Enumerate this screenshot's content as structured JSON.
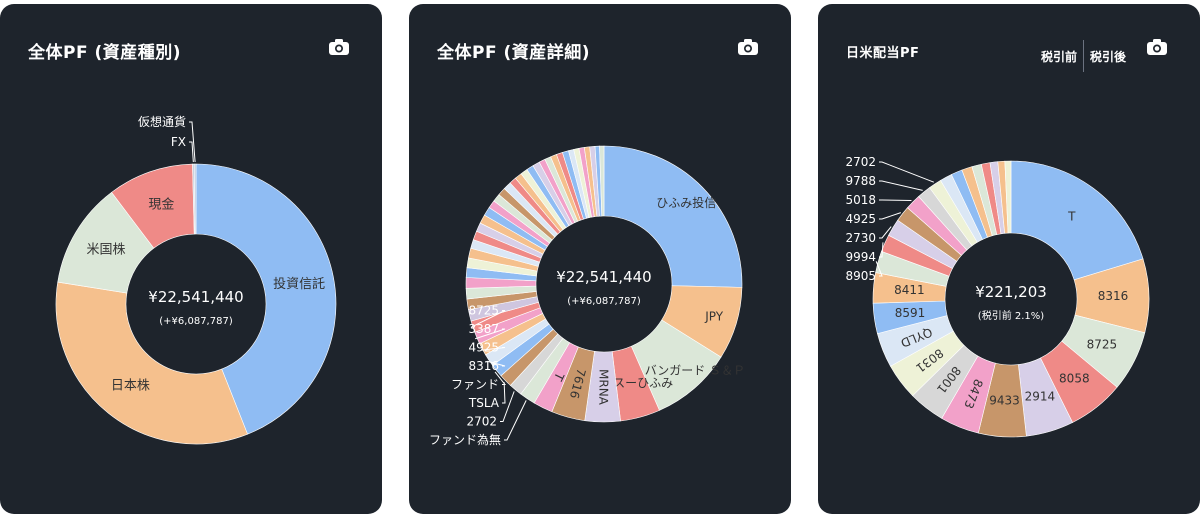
{
  "cards": [
    {
      "title": "全体PF (資産種別)",
      "camera_icon": "camera-icon"
    },
    {
      "title": "全体PF (資産詳細)",
      "camera_icon": "camera-icon"
    },
    {
      "title": "日米配当PF",
      "camera_icon": "camera-icon",
      "tax_toggle": {
        "before": "税引前",
        "after": "税引後"
      }
    }
  ],
  "chart_data": [
    {
      "type": "pie",
      "donut": true,
      "center_value": "¥22,541,440",
      "center_sub": "(+¥6,087,787)",
      "slices": [
        {
          "label": "投資信託",
          "value": 44.0,
          "color": "#8fbcf3",
          "label_inside": true
        },
        {
          "label": "日本株",
          "value": 33.5,
          "color": "#f5c08d",
          "label_inside": true
        },
        {
          "label": "米国株",
          "value": 12.2,
          "color": "#dbe7d8",
          "label_inside": true
        },
        {
          "label": "現金",
          "value": 9.9,
          "color": "#ef8a87",
          "label_inside": true
        },
        {
          "label": "FX",
          "value": 0.2,
          "color": "#c8d3e0",
          "label_inside": false
        },
        {
          "label": "仮想通貨",
          "value": 0.2,
          "color": "#b9c8dc",
          "label_inside": false
        }
      ]
    },
    {
      "type": "pie",
      "donut": true,
      "center_value": "¥22,541,440",
      "center_sub": "(+¥6,087,787)",
      "slices": [
        {
          "label": "ひふみ投信",
          "value": 24.5,
          "color": "#8fbcf3",
          "label_inside": true
        },
        {
          "label": "JPY",
          "value": 8.2,
          "color": "#f5c08d",
          "label_inside": true
        },
        {
          "label": "SBI・バンガード Ｓ＆Ｐ",
          "value": 9.2,
          "color": "#dbe7d8",
          "label_inside": true
        },
        {
          "label": "レオスーひふみ",
          "value": 4.5,
          "color": "#ef8a87",
          "label_inside": true
        },
        {
          "label": "MRNA",
          "value": 4.0,
          "color": "#d7cfe8",
          "label_inside": true,
          "rotated": true
        },
        {
          "label": "7616",
          "value": 3.8,
          "color": "#c7966a",
          "label_inside": true,
          "rotated": true
        },
        {
          "label": "T",
          "value": 2.2,
          "color": "#f2a1c9",
          "label_inside": true,
          "rotated": true
        },
        {
          "label": "ファンド為無",
          "value": 1.8,
          "color": "#dbe7d8",
          "label_inside": false
        },
        {
          "label": "2702",
          "value": 1.5,
          "color": "#d7d7d7",
          "label_inside": false
        },
        {
          "label": "TSLA",
          "value": 1.5,
          "color": "#c7966a",
          "label_inside": false
        },
        {
          "label": "ファンド",
          "value": 1.5,
          "color": "#8fbcf3",
          "label_inside": false
        },
        {
          "label": "8316",
          "value": 1.4,
          "color": "#dbe7f5",
          "label_inside": false
        },
        {
          "label": "4925",
          "value": 1.4,
          "color": "#f5c08d",
          "label_inside": false
        },
        {
          "label": "3387",
          "value": 1.4,
          "color": "#f2a1c9",
          "label_inside": false
        },
        {
          "label": "8725",
          "value": 1.3,
          "color": "#ef8a87",
          "label_inside": false
        },
        {
          "label": "",
          "value": 1.3,
          "color": "#cfc6df",
          "label_inside": false
        },
        {
          "label": "",
          "value": 1.2,
          "color": "#c7966a",
          "label_inside": false
        },
        {
          "label": "",
          "value": 1.2,
          "color": "#dbe7d8",
          "label_inside": false
        },
        {
          "label": "",
          "value": 1.2,
          "color": "#f2a1c9",
          "label_inside": false
        },
        {
          "label": "",
          "value": 1.1,
          "color": "#8fbcf3",
          "label_inside": false
        },
        {
          "label": "",
          "value": 1.1,
          "color": "#eef2d7",
          "label_inside": false
        },
        {
          "label": "",
          "value": 1.1,
          "color": "#f5c08d",
          "label_inside": false
        },
        {
          "label": "",
          "value": 1.0,
          "color": "#dbe7f5",
          "label_inside": false
        },
        {
          "label": "",
          "value": 1.0,
          "color": "#ef8a87",
          "label_inside": false
        },
        {
          "label": "",
          "value": 1.0,
          "color": "#d7cfe8",
          "label_inside": false
        },
        {
          "label": "",
          "value": 1.0,
          "color": "#f5c08d",
          "label_inside": false
        },
        {
          "label": "",
          "value": 1.0,
          "color": "#8fbcf3",
          "label_inside": false
        },
        {
          "label": "",
          "value": 0.9,
          "color": "#f2a1c9",
          "label_inside": false
        },
        {
          "label": "",
          "value": 0.9,
          "color": "#dbe7d8",
          "label_inside": false
        },
        {
          "label": "",
          "value": 0.9,
          "color": "#c7966a",
          "label_inside": false
        },
        {
          "label": "",
          "value": 0.9,
          "color": "#dbe7f5",
          "label_inside": false
        },
        {
          "label": "",
          "value": 0.8,
          "color": "#ef8a87",
          "label_inside": false
        },
        {
          "label": "",
          "value": 0.8,
          "color": "#f5c08d",
          "label_inside": false
        },
        {
          "label": "",
          "value": 0.8,
          "color": "#eef2d7",
          "label_inside": false
        },
        {
          "label": "",
          "value": 0.8,
          "color": "#8fbcf3",
          "label_inside": false
        },
        {
          "label": "",
          "value": 0.8,
          "color": "#d7cfe8",
          "label_inside": false
        },
        {
          "label": "",
          "value": 0.7,
          "color": "#f2a1c9",
          "label_inside": false
        },
        {
          "label": "",
          "value": 0.7,
          "color": "#dbe7d8",
          "label_inside": false
        },
        {
          "label": "",
          "value": 0.7,
          "color": "#f5c08d",
          "label_inside": false
        },
        {
          "label": "",
          "value": 0.7,
          "color": "#ef8a87",
          "label_inside": false
        },
        {
          "label": "",
          "value": 0.7,
          "color": "#8fbcf3",
          "label_inside": false
        },
        {
          "label": "",
          "value": 0.6,
          "color": "#dbe7f5",
          "label_inside": false
        },
        {
          "label": "",
          "value": 0.6,
          "color": "#eef2d7",
          "label_inside": false
        },
        {
          "label": "",
          "value": 0.6,
          "color": "#f2a1c9",
          "label_inside": false
        },
        {
          "label": "",
          "value": 0.6,
          "color": "#f5c08d",
          "label_inside": false
        },
        {
          "label": "",
          "value": 0.6,
          "color": "#d7cfe8",
          "label_inside": false
        },
        {
          "label": "",
          "value": 0.5,
          "color": "#8fbcf3",
          "label_inside": false
        },
        {
          "label": "",
          "value": 0.5,
          "color": "#dbe7d8",
          "label_inside": false
        }
      ]
    },
    {
      "type": "pie",
      "donut": true,
      "center_value": "¥221,203",
      "center_sub": "(税引前 2.1%)",
      "slices": [
        {
          "label": "T",
          "value": 20.0,
          "color": "#8fbcf3",
          "label_inside": true
        },
        {
          "label": "8316",
          "value": 8.5,
          "color": "#f5c08d",
          "label_inside": true
        },
        {
          "label": "8725",
          "value": 7.0,
          "color": "#dbe7d8",
          "label_inside": true
        },
        {
          "label": "8058",
          "value": 6.5,
          "color": "#ef8a87",
          "label_inside": true
        },
        {
          "label": "2914",
          "value": 5.5,
          "color": "#d7cfe8",
          "label_inside": true
        },
        {
          "label": "9433",
          "value": 5.5,
          "color": "#c7966a",
          "label_inside": true
        },
        {
          "label": "8473",
          "value": 4.5,
          "color": "#f2a1c9",
          "label_inside": true,
          "rotated": true
        },
        {
          "label": "8001",
          "value": 4.2,
          "color": "#d7d7d7",
          "label_inside": true,
          "rotated": true
        },
        {
          "label": "8031",
          "value": 4.2,
          "color": "#eef2d7",
          "label_inside": true,
          "rotated": true
        },
        {
          "label": "QYLD",
          "value": 4.0,
          "color": "#dbe7f5",
          "label_inside": true,
          "rotated": true
        },
        {
          "label": "8591",
          "value": 3.5,
          "color": "#8fbcf3",
          "label_inside": true
        },
        {
          "label": "8411",
          "value": 3.5,
          "color": "#f5c08d",
          "label_inside": true
        },
        {
          "label": "8905",
          "value": 2.5,
          "color": "#dbe7d8",
          "label_inside": false
        },
        {
          "label": "9994",
          "value": 2.0,
          "color": "#ef8a87",
          "label_inside": false
        },
        {
          "label": "2730",
          "value": 2.0,
          "color": "#d7cfe8",
          "label_inside": false
        },
        {
          "label": "4925",
          "value": 1.8,
          "color": "#c7966a",
          "label_inside": false
        },
        {
          "label": "5018",
          "value": 1.8,
          "color": "#f2a1c9",
          "label_inside": false
        },
        {
          "label": "9788",
          "value": 1.6,
          "color": "#d7d7d7",
          "label_inside": false
        },
        {
          "label": "2702",
          "value": 1.5,
          "color": "#eef2d7",
          "label_inside": false
        },
        {
          "label": "",
          "value": 1.4,
          "color": "#dbe7f5",
          "label_inside": false
        },
        {
          "label": "",
          "value": 1.3,
          "color": "#8fbcf3",
          "label_inside": false
        },
        {
          "label": "",
          "value": 1.2,
          "color": "#f5c08d",
          "label_inside": false
        },
        {
          "label": "",
          "value": 1.1,
          "color": "#dbe7d8",
          "label_inside": false
        },
        {
          "label": "",
          "value": 1.0,
          "color": "#ef8a87",
          "label_inside": false
        },
        {
          "label": "",
          "value": 0.9,
          "color": "#d7cfe8",
          "label_inside": false
        },
        {
          "label": "",
          "value": 0.8,
          "color": "#f5c08d",
          "label_inside": false
        },
        {
          "label": "",
          "value": 0.7,
          "color": "#eef2d7",
          "label_inside": false
        }
      ]
    }
  ]
}
